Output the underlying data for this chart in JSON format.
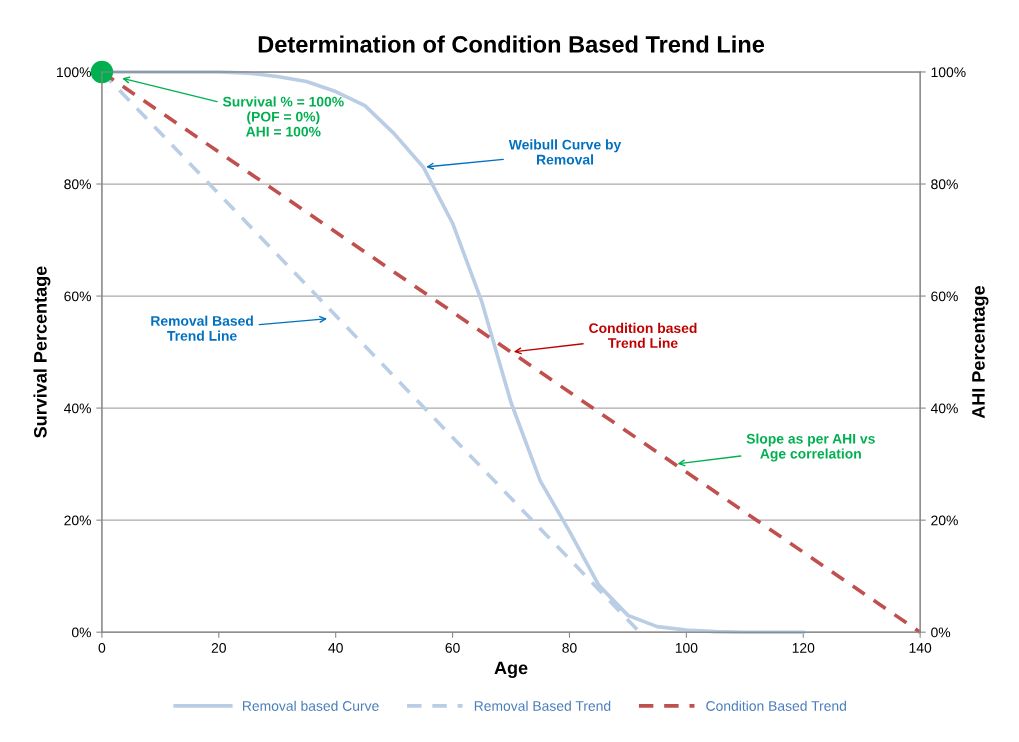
{
  "chart_data": {
    "type": "line",
    "title": "Determination of Condition Based Trend Line",
    "xlabel": "Age",
    "ylabel": "Survival Percentage",
    "y2label": "AHI Percentage",
    "xlim": [
      0,
      140
    ],
    "xticks": [
      0,
      20,
      40,
      60,
      80,
      100,
      120,
      140
    ],
    "ylim": [
      0,
      100
    ],
    "yticks": [
      {
        "value": 0,
        "label": "0%"
      },
      {
        "value": 20,
        "label": "20%"
      },
      {
        "value": 40,
        "label": "40%"
      },
      {
        "value": 60,
        "label": "60%"
      },
      {
        "value": 80,
        "label": "80%"
      },
      {
        "value": 100,
        "label": "100%"
      }
    ],
    "y2lim": [
      0,
      100
    ],
    "y2ticks": [
      {
        "value": 0,
        "label": "0%"
      },
      {
        "value": 20,
        "label": "20%"
      },
      {
        "value": 40,
        "label": "40%"
      },
      {
        "value": 60,
        "label": "60%"
      },
      {
        "value": 80,
        "label": "80%"
      },
      {
        "value": 100,
        "label": "100%"
      }
    ],
    "grid": "y",
    "legend": "bottom",
    "marker": "none",
    "series": [
      {
        "name": "Removal based Curve",
        "color": "#b9cde5",
        "line_style": "solid",
        "x": [
          0,
          10,
          20,
          25,
          30,
          35,
          40,
          45,
          50,
          55,
          60,
          65,
          70,
          75,
          80,
          85,
          90,
          95,
          100,
          105,
          110,
          120
        ],
        "values": [
          100,
          100,
          100,
          99.8,
          99.2,
          98.3,
          96.5,
          94,
          89,
          83,
          73,
          59,
          41,
          27,
          18,
          8.4,
          3,
          1,
          0.4,
          0.1,
          0,
          0
        ]
      },
      {
        "name": "Removal Based Trend",
        "color": "#b9cde5",
        "line_style": "dashed",
        "x": [
          0,
          92
        ],
        "values": [
          100,
          0
        ]
      },
      {
        "name": "Condition Based Trend",
        "color": "#c0504d",
        "line_style": "dashed",
        "x": [
          0,
          140
        ],
        "values": [
          100,
          0
        ]
      },
      {
        "type": "scatter",
        "color": "#00b050",
        "marker": "circle",
        "x": [
          0
        ],
        "values": [
          100
        ]
      }
    ],
    "annotations": [
      {
        "text": "Survival % = 100%\n(POF = 0%)\nAHI = 100%",
        "x": 3,
        "y": 99
      },
      {
        "text": "Weibull Curve by\nRemoval",
        "x": 55,
        "y": 83
      },
      {
        "text": "Removal Based\nTrend Line",
        "x": 39,
        "y": 56
      },
      {
        "text": "Condition based\nTrend Line",
        "x": 70,
        "y": 50
      },
      {
        "text": "Slope as per AHI vs\nAge correlation",
        "x": 98,
        "y": 30
      }
    ]
  }
}
